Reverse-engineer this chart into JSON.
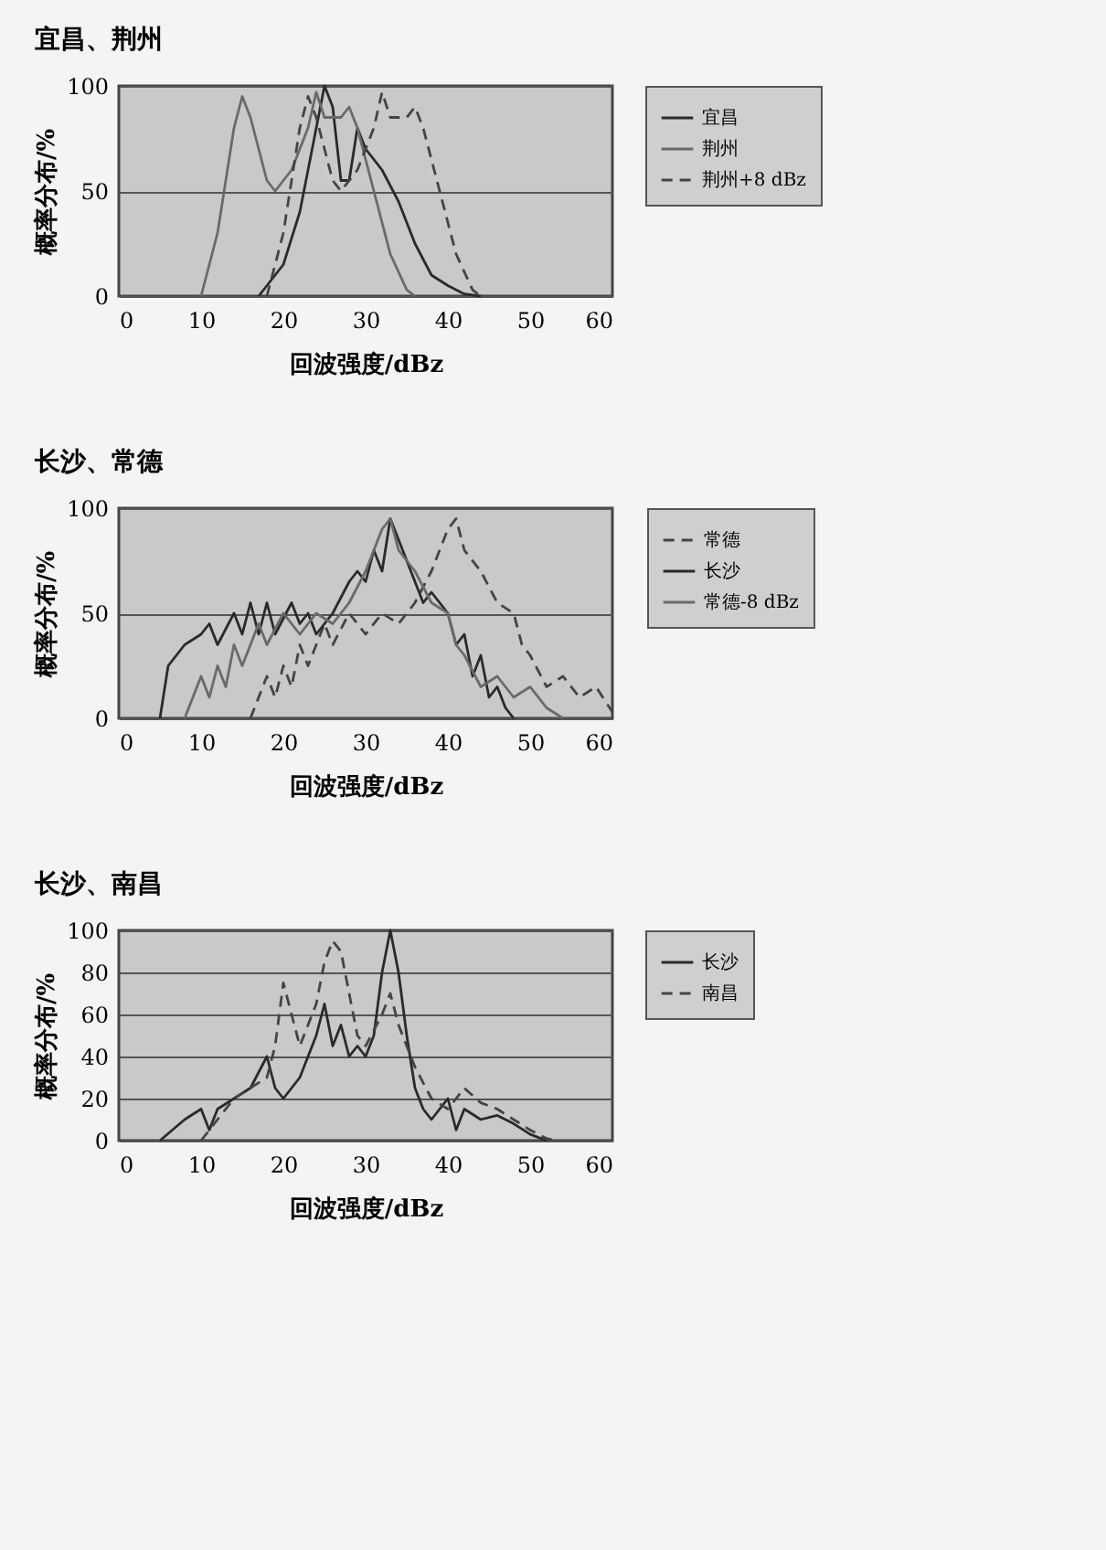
{
  "chart_data": [
    {
      "type": "line",
      "title": "宜昌、荆州",
      "xlabel": "回波强度/dBz",
      "ylabel": "概率分布/%",
      "xlim": [
        0,
        60
      ],
      "xticks": [
        0,
        10,
        20,
        30,
        40,
        50,
        60
      ],
      "ylim": [
        0,
        100
      ],
      "yticks": [
        0,
        50,
        100
      ],
      "grid": "y",
      "legend": "right",
      "series": [
        {
          "name": "宜昌",
          "color": "#2a2a2a",
          "line_style": "solid",
          "x": [
            17,
            20,
            22,
            24,
            25,
            26,
            27,
            28,
            29,
            30,
            32,
            34,
            36,
            38,
            40,
            42,
            44
          ],
          "values": [
            0,
            15,
            40,
            80,
            100,
            90,
            55,
            55,
            80,
            70,
            60,
            45,
            25,
            10,
            5,
            1,
            0
          ]
        },
        {
          "name": "荆州",
          "color": "#6a6a6a",
          "line_style": "solid",
          "x": [
            10,
            12,
            14,
            15,
            16,
            18,
            19,
            21,
            23,
            24,
            25,
            27,
            28,
            29,
            31,
            33,
            35,
            36
          ],
          "values": [
            0,
            30,
            80,
            95,
            85,
            55,
            50,
            60,
            80,
            97,
            85,
            85,
            90,
            80,
            50,
            20,
            3,
            0
          ]
        },
        {
          "name": "荆州+8 dBz",
          "color": "#444444",
          "line_style": "dashed",
          "x": [
            18,
            20,
            22,
            23,
            24,
            26,
            27,
            29,
            31,
            32,
            33,
            35,
            36,
            37,
            39,
            41,
            43,
            44
          ],
          "values": [
            0,
            30,
            80,
            95,
            85,
            55,
            50,
            60,
            80,
            97,
            85,
            85,
            90,
            80,
            50,
            20,
            3,
            0
          ]
        }
      ]
    },
    {
      "type": "line",
      "title": "长沙、常德",
      "xlabel": "回波强度/dBz",
      "ylabel": "概率分布/%",
      "xlim": [
        0,
        60
      ],
      "xticks": [
        0,
        10,
        20,
        30,
        40,
        50,
        60
      ],
      "ylim": [
        0,
        100
      ],
      "yticks": [
        0,
        50,
        100
      ],
      "grid": "y",
      "legend": "right",
      "series": [
        {
          "name": "常德",
          "color": "#444444",
          "line_style": "dashed",
          "x": [
            16,
            18,
            19,
            20,
            21,
            22,
            23,
            25,
            26,
            28,
            30,
            32,
            34,
            36,
            38,
            39,
            40,
            41,
            42,
            44,
            46,
            48,
            49,
            50,
            52,
            54,
            56,
            58,
            60
          ],
          "values": [
            0,
            20,
            10,
            25,
            15,
            35,
            25,
            45,
            35,
            50,
            40,
            50,
            45,
            55,
            70,
            80,
            90,
            95,
            80,
            70,
            55,
            50,
            35,
            30,
            15,
            20,
            10,
            15,
            3
          ]
        },
        {
          "name": "长沙",
          "color": "#2a2a2a",
          "line_style": "solid",
          "x": [
            5,
            6,
            8,
            10,
            11,
            12,
            14,
            15,
            16,
            17,
            18,
            19,
            21,
            22,
            23,
            24,
            26,
            28,
            29,
            30,
            31,
            32,
            33,
            34,
            35,
            36,
            37,
            38,
            40,
            41,
            42,
            43,
            44,
            45,
            46,
            47,
            48
          ],
          "values": [
            0,
            25,
            35,
            40,
            45,
            35,
            50,
            40,
            55,
            40,
            55,
            40,
            55,
            45,
            50,
            40,
            50,
            65,
            70,
            65,
            80,
            70,
            95,
            85,
            75,
            65,
            55,
            60,
            50,
            35,
            40,
            20,
            30,
            10,
            15,
            5,
            0
          ]
        },
        {
          "name": "常德-8 dBz",
          "color": "#6a6a6a",
          "line_style": "solid",
          "x": [
            8,
            10,
            11,
            12,
            13,
            14,
            15,
            17,
            18,
            20,
            22,
            24,
            26,
            28,
            30,
            31,
            32,
            33,
            34,
            36,
            38,
            40,
            41,
            42,
            44,
            46,
            48,
            50,
            52,
            54
          ],
          "values": [
            0,
            20,
            10,
            25,
            15,
            35,
            25,
            45,
            35,
            50,
            40,
            50,
            45,
            55,
            70,
            80,
            90,
            95,
            80,
            70,
            55,
            50,
            35,
            30,
            15,
            20,
            10,
            15,
            5,
            0
          ]
        }
      ]
    },
    {
      "type": "line",
      "title": "长沙、南昌",
      "xlabel": "回波强度/dBz",
      "ylabel": "概率分布/%",
      "xlim": [
        0,
        60
      ],
      "xticks": [
        0,
        10,
        20,
        30,
        40,
        50,
        60
      ],
      "ylim": [
        0,
        100
      ],
      "yticks": [
        0,
        20,
        40,
        60,
        80,
        100
      ],
      "grid": "y",
      "legend": "right",
      "series": [
        {
          "name": "长沙",
          "color": "#2a2a2a",
          "line_style": "solid",
          "x": [
            5,
            8,
            10,
            11,
            12,
            14,
            16,
            18,
            19,
            20,
            22,
            24,
            25,
            26,
            27,
            28,
            29,
            30,
            31,
            32,
            33,
            34,
            35,
            36,
            37,
            38,
            40,
            41,
            42,
            44,
            46,
            48,
            50,
            52
          ],
          "values": [
            0,
            10,
            15,
            5,
            15,
            20,
            25,
            40,
            25,
            20,
            30,
            50,
            65,
            45,
            55,
            40,
            45,
            40,
            50,
            80,
            100,
            80,
            50,
            25,
            15,
            10,
            20,
            5,
            15,
            10,
            12,
            8,
            3,
            0
          ]
        },
        {
          "name": "南昌",
          "color": "#444444",
          "line_style": "dashed",
          "x": [
            10,
            12,
            14,
            16,
            18,
            19,
            20,
            21,
            22,
            24,
            25,
            26,
            27,
            28,
            29,
            30,
            32,
            33,
            34,
            36,
            38,
            40,
            42,
            44,
            46,
            48,
            50,
            52,
            53
          ],
          "values": [
            0,
            10,
            20,
            25,
            30,
            45,
            75,
            60,
            45,
            65,
            85,
            95,
            90,
            70,
            50,
            45,
            60,
            70,
            55,
            35,
            20,
            15,
            25,
            18,
            15,
            10,
            5,
            1,
            0
          ]
        }
      ]
    }
  ]
}
